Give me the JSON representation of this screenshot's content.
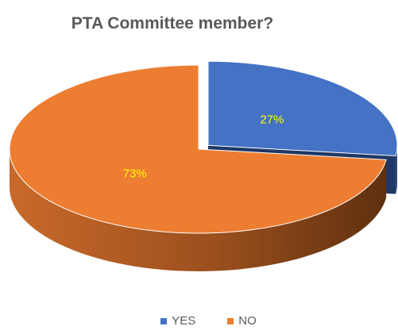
{
  "chart_data": {
    "type": "pie",
    "title": "PTA Committee member?",
    "categories": [
      "YES",
      "NO"
    ],
    "values": [
      27,
      73
    ],
    "data_labels": [
      "27%",
      "73%"
    ],
    "colors": [
      "#4472C4",
      "#ED7D31"
    ],
    "exploded": "YES",
    "style": "3d",
    "legend": "bottom",
    "label_color": "#FFFF00"
  }
}
